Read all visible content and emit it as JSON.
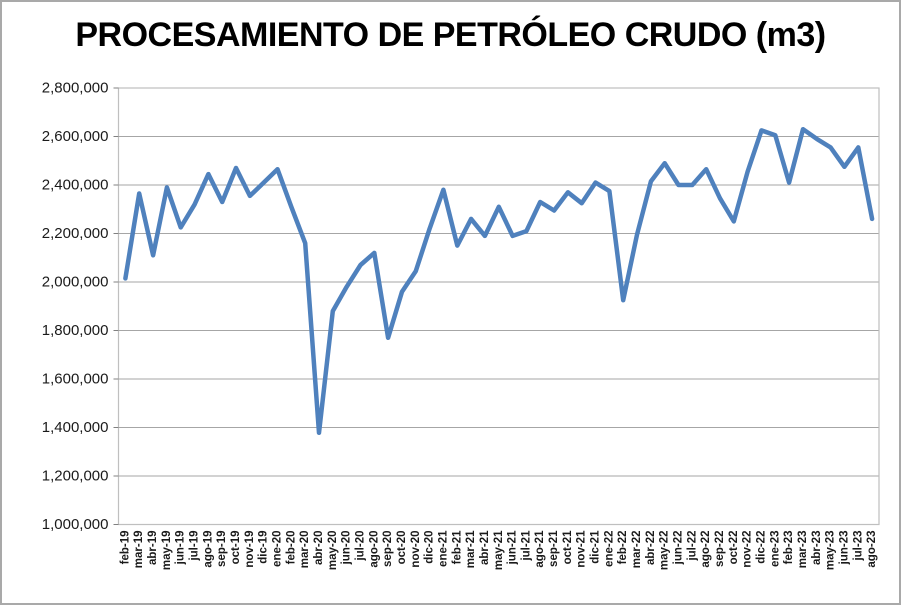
{
  "window": {
    "background": "#ffffff",
    "border_color": "#a9a9a9"
  },
  "chart_data": {
    "type": "line",
    "title": "PROCESAMIENTO DE PETRÓLEO CRUDO (m3)",
    "xlabel": "",
    "ylabel": "",
    "legend": "none",
    "grid": true,
    "gridline_color": "#a6a6a6",
    "plot_border_color": "#bfbfbf",
    "series_color": "#4f81bd",
    "line_width": 4.5,
    "ylim": [
      1000000,
      2800000
    ],
    "ytick_step": 200000,
    "ytick_labels": [
      "2,800,000",
      "2,600,000",
      "2,400,000",
      "2,200,000",
      "2,000,000",
      "1,800,000",
      "1,600,000",
      "1,400,000",
      "1,200,000",
      "1,000,000"
    ],
    "categories": [
      "feb-19",
      "mar-19",
      "abr-19",
      "may-19",
      "jun-19",
      "jul-19",
      "ago-19",
      "sep-19",
      "oct-19",
      "nov-19",
      "dic-19",
      "ene-20",
      "feb-20",
      "mar-20",
      "abr-20",
      "may-20",
      "jun-20",
      "jul-20",
      "ago-20",
      "sep-20",
      "oct-20",
      "nov-20",
      "dic-20",
      "ene-21",
      "feb-21",
      "mar-21",
      "abr-21",
      "may-21",
      "jun-21",
      "jul-21",
      "ago-21",
      "sep-21",
      "oct-21",
      "nov-21",
      "dic-21",
      "ene-22",
      "feb-22",
      "mar-22",
      "abr-22",
      "may-22",
      "jun-22",
      "jul-22",
      "ago-22",
      "sep-22",
      "oct-22",
      "nov-22",
      "dic-22",
      "ene-23",
      "feb-23",
      "mar-23",
      "abr-23",
      "may-23",
      "jun-23",
      "jul-23",
      "ago-23"
    ],
    "values": [
      2015000,
      2365000,
      2110000,
      2390000,
      2225000,
      2320000,
      2445000,
      2330000,
      2470000,
      2355000,
      2410000,
      2465000,
      2310000,
      2160000,
      1378000,
      1880000,
      1980000,
      2070000,
      2120000,
      1770000,
      1960000,
      2045000,
      2220000,
      2380000,
      2150000,
      2260000,
      2190000,
      2310000,
      2190000,
      2210000,
      2330000,
      2295000,
      2370000,
      2325000,
      2410000,
      2375000,
      1925000,
      2195000,
      2415000,
      2490000,
      2400000,
      2400000,
      2465000,
      2345000,
      2250000,
      2455000,
      2625000,
      2605000,
      2410000,
      2630000,
      2590000,
      2555000,
      2475000,
      2555000,
      2260000
    ]
  }
}
